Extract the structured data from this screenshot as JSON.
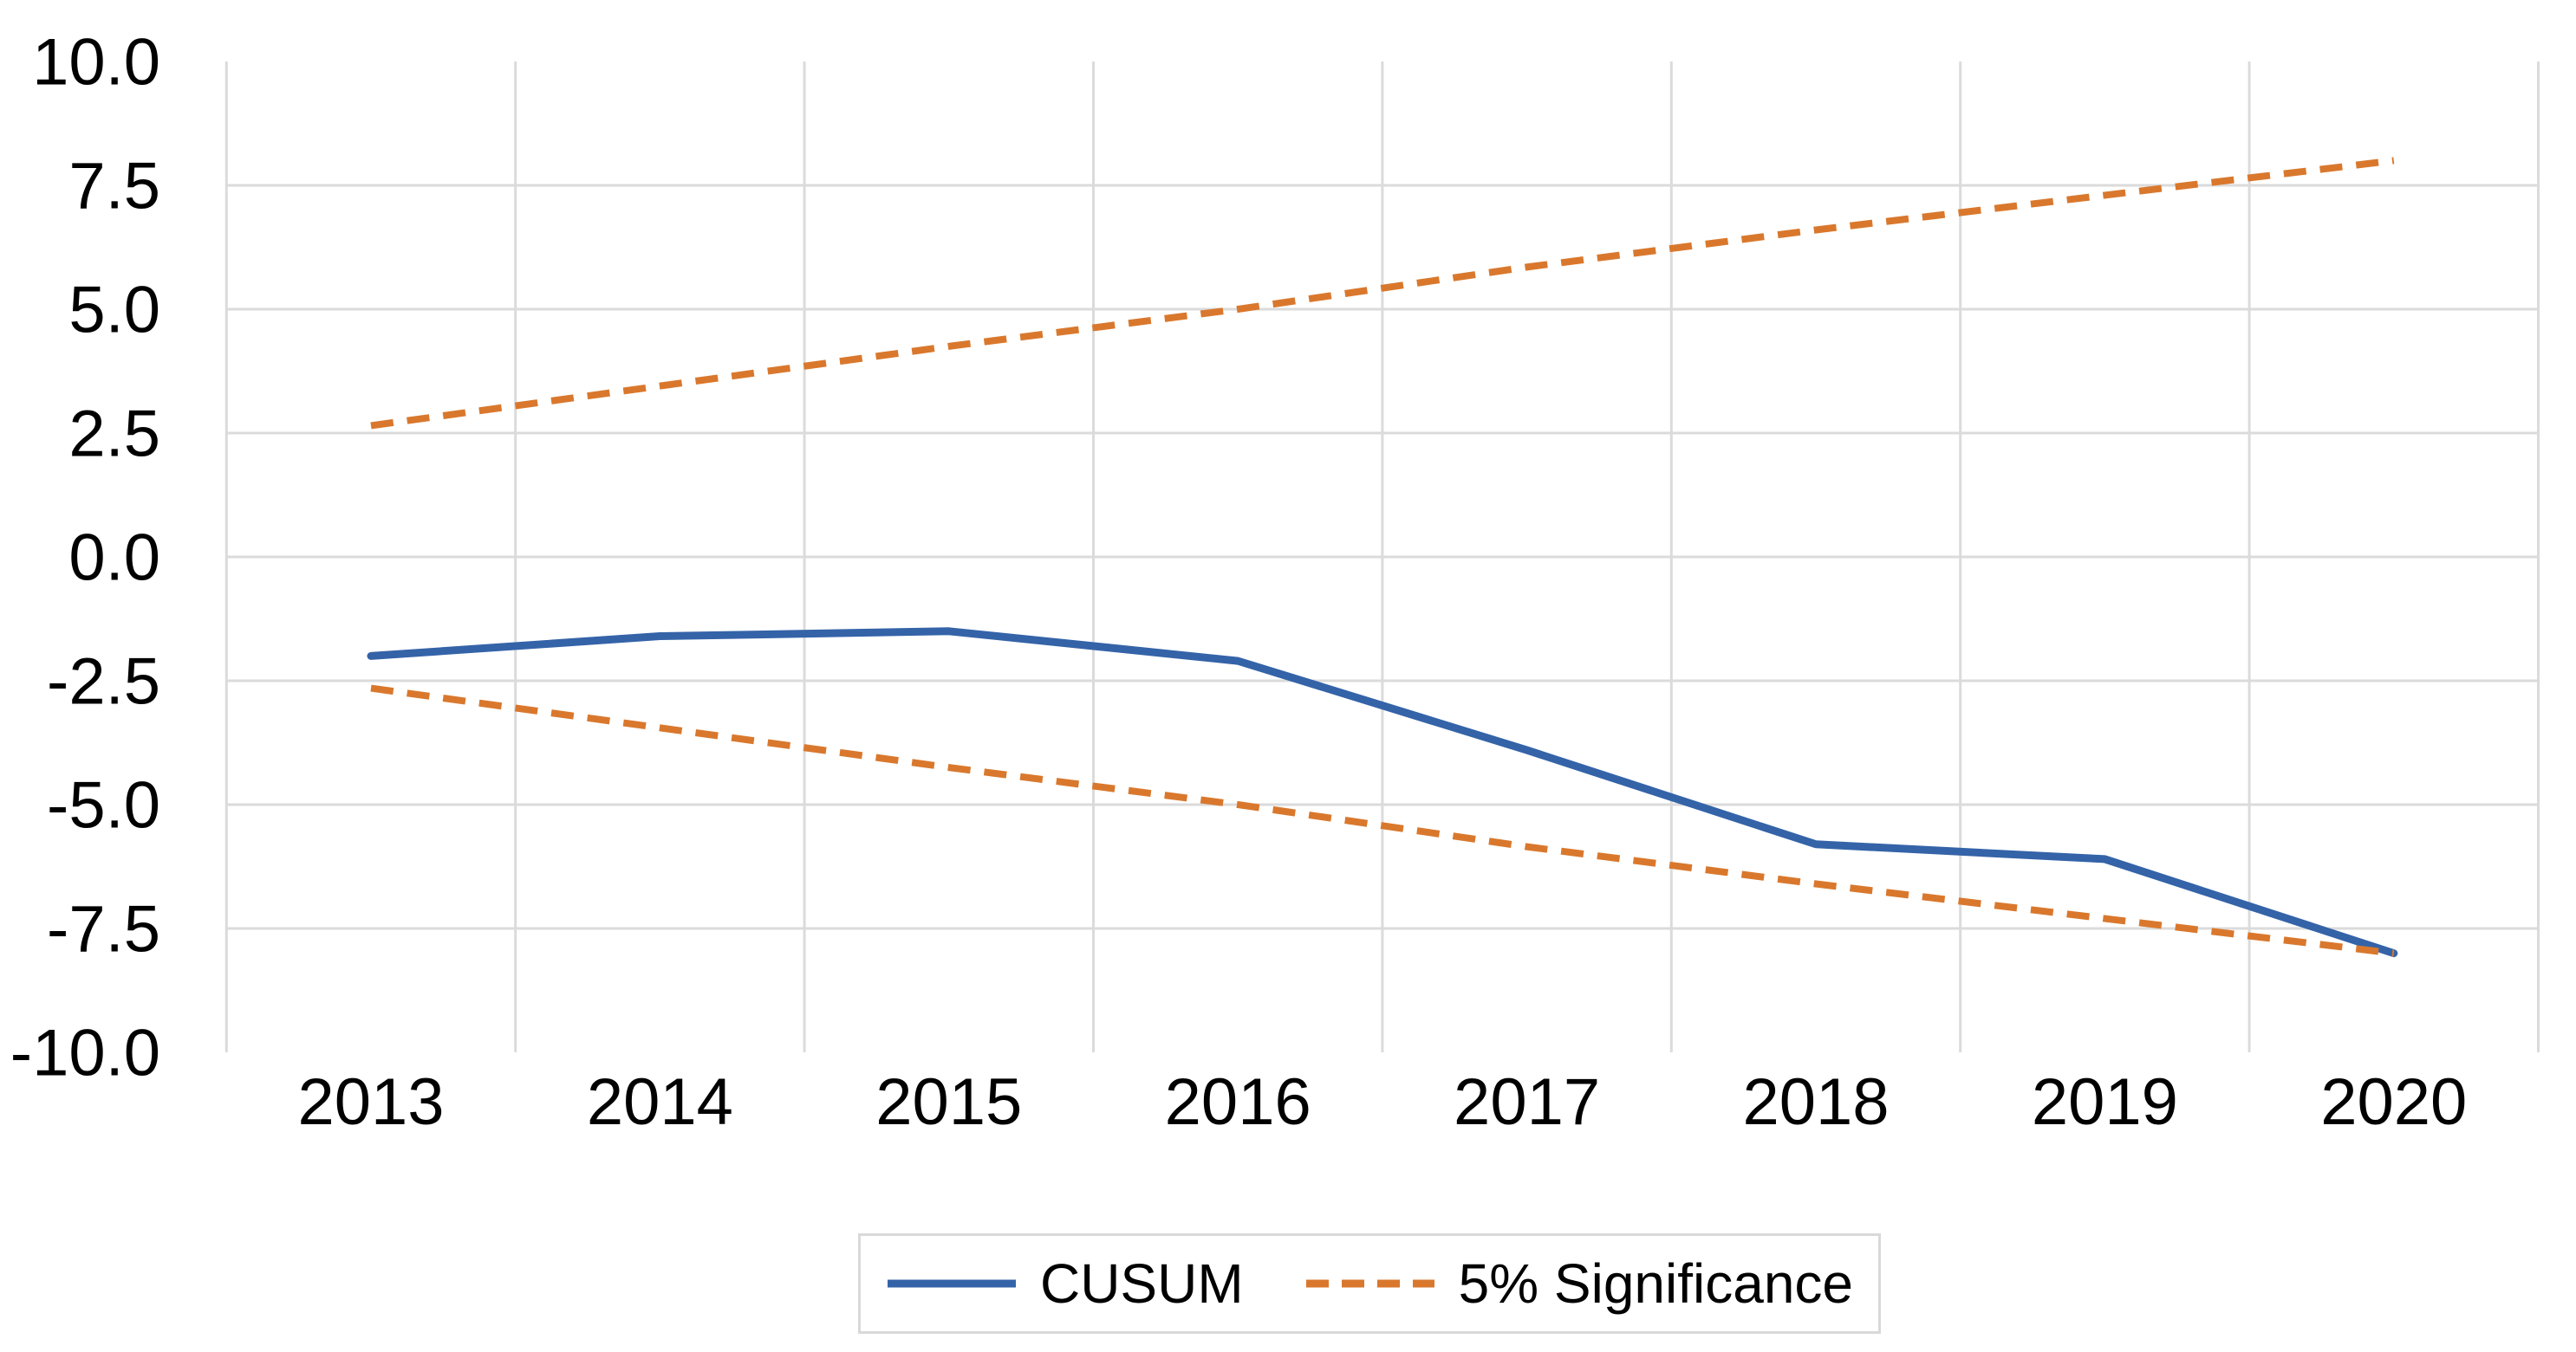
{
  "chart_data": {
    "type": "line",
    "title": "",
    "x": [
      2013,
      2014,
      2015,
      2016,
      2017,
      2018,
      2019,
      2020
    ],
    "x_labels": [
      "2013",
      "2014",
      "2015",
      "2016",
      "2017",
      "2018",
      "2019",
      "2020"
    ],
    "series": [
      {
        "name": "CUSUM",
        "style": "solid",
        "color": "#3463A8",
        "values": [
          -2.0,
          -1.6,
          -1.5,
          -2.1,
          -3.9,
          -5.8,
          -6.1,
          -8.0
        ]
      },
      {
        "name": "5% Significance (upper)",
        "style": "dashed",
        "color": "#D9782D",
        "values": [
          2.65,
          3.45,
          4.25,
          5.0,
          5.85,
          6.6,
          7.3,
          8.0
        ]
      },
      {
        "name": "5% Significance (lower)",
        "style": "dashed",
        "color": "#D9782D",
        "values": [
          -2.65,
          -3.45,
          -4.25,
          -5.0,
          -5.85,
          -6.6,
          -7.3,
          -8.0
        ]
      }
    ],
    "ylim": [
      -10,
      10
    ],
    "yticks": [
      10,
      7.5,
      5,
      2.5,
      0,
      -2.5,
      -5,
      -7.5,
      -10
    ],
    "ytick_labels": [
      "10.0",
      "7.5",
      "5.0",
      "2.5",
      "0.0",
      "-2.5",
      "-5.0",
      "-7.5",
      "-10.0"
    ],
    "grid": true,
    "gridlines_at_ylim_edges": false,
    "vertical_gridlines": "between-categories",
    "legend_position": "bottom"
  },
  "legend": {
    "cusum_label": "CUSUM",
    "significance_label": "5% Significance"
  },
  "colors": {
    "cusum": "#3463A8",
    "significance": "#D9782D",
    "gridline": "#DBDBDB",
    "legend_border": "#D9D9D9",
    "text": "#000000"
  }
}
